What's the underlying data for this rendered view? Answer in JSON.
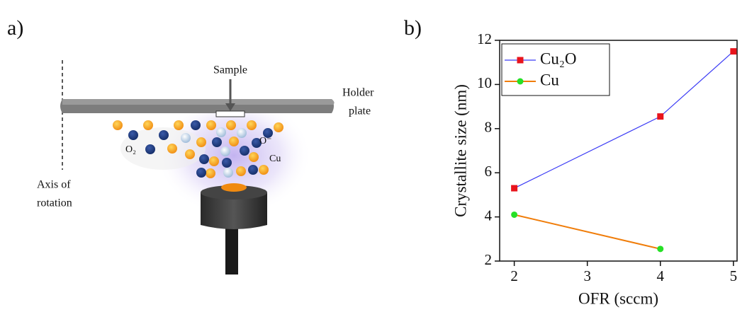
{
  "diagram": {
    "panel_label": "a)",
    "sample": "Sample",
    "holder": [
      "Holder",
      "plate"
    ],
    "axis": [
      "Axis of",
      "rotation"
    ],
    "o2": "O₂",
    "o_minus": "O⁻",
    "cu": "Cu"
  },
  "chart_data": {
    "type": "line",
    "panel_label": "b)",
    "x_label": "OFR (sccm)",
    "y_label": "Crystallite size (nm)",
    "xlim": [
      1.8,
      5.05
    ],
    "xticks": [
      2,
      3,
      4,
      5
    ],
    "ylim": [
      2,
      12
    ],
    "yticks": [
      2,
      4,
      6,
      8,
      10,
      12
    ],
    "legend": "upper left",
    "series": [
      {
        "name": "Cu₂O",
        "color": "#3b3bf5",
        "marker_color": "#e8141c",
        "marker": "square",
        "x": [
          2,
          4,
          5
        ],
        "values": [
          5.3,
          8.55,
          11.5
        ]
      },
      {
        "name": "Cu",
        "color": "#f07d0a",
        "marker_color": "#26e026",
        "marker": "circle",
        "x": [
          2,
          4
        ],
        "values": [
          4.1,
          2.55
        ]
      }
    ]
  }
}
